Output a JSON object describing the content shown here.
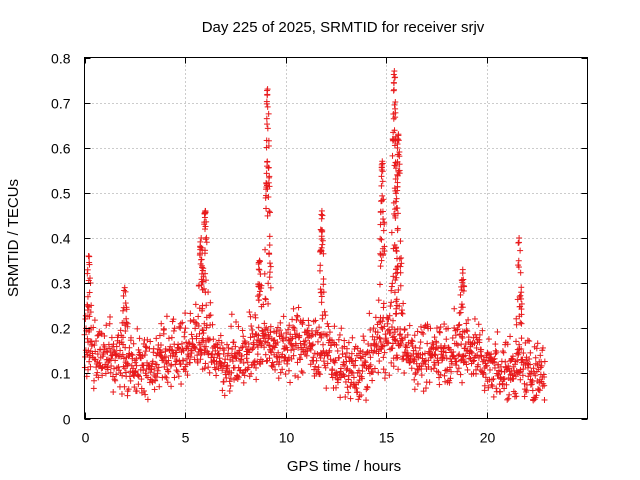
{
  "chart_data": {
    "type": "scatter",
    "title": "Day 225 of 2025, SRMTID for receiver srjv",
    "xlabel": "GPS time / hours",
    "ylabel": "SRMTID / TECUs",
    "xlim": [
      0,
      25
    ],
    "ylim": [
      0,
      0.8
    ],
    "xticks": [
      0,
      5,
      10,
      15,
      20
    ],
    "xtick_labels": [
      "0",
      "5",
      "10",
      "15",
      "20"
    ],
    "yticks": [
      0,
      0.1,
      0.2,
      0.3,
      0.4,
      0.5,
      0.6,
      0.7,
      0.8
    ],
    "ytick_labels": [
      "0",
      "0.1",
      "0.2",
      "0.3",
      "0.4",
      "0.5",
      "0.6",
      "0.7",
      "0.8"
    ],
    "grid": true,
    "marker": "+",
    "series_color": "#e8191b",
    "x_range_data": [
      0,
      22.9
    ],
    "data_profile": {
      "description": "approximate envelope of the scattered SRMTID values",
      "baseline": [
        [
          0.0,
          0.17
        ],
        [
          0.5,
          0.14
        ],
        [
          1.0,
          0.13
        ],
        [
          1.5,
          0.14
        ],
        [
          2.0,
          0.13
        ],
        [
          2.5,
          0.11
        ],
        [
          3.0,
          0.12
        ],
        [
          3.5,
          0.12
        ],
        [
          4.0,
          0.14
        ],
        [
          4.5,
          0.15
        ],
        [
          5.0,
          0.15
        ],
        [
          5.5,
          0.17
        ],
        [
          6.0,
          0.18
        ],
        [
          6.5,
          0.14
        ],
        [
          7.0,
          0.13
        ],
        [
          7.5,
          0.14
        ],
        [
          8.0,
          0.15
        ],
        [
          8.5,
          0.16
        ],
        [
          9.0,
          0.18
        ],
        [
          9.5,
          0.16
        ],
        [
          10.0,
          0.15
        ],
        [
          10.5,
          0.17
        ],
        [
          11.0,
          0.17
        ],
        [
          11.5,
          0.15
        ],
        [
          12.0,
          0.16
        ],
        [
          12.5,
          0.13
        ],
        [
          13.0,
          0.11
        ],
        [
          13.5,
          0.1
        ],
        [
          14.0,
          0.12
        ],
        [
          14.5,
          0.16
        ],
        [
          15.0,
          0.18
        ],
        [
          15.5,
          0.18
        ],
        [
          16.0,
          0.16
        ],
        [
          16.5,
          0.14
        ],
        [
          17.0,
          0.14
        ],
        [
          17.5,
          0.15
        ],
        [
          18.0,
          0.15
        ],
        [
          18.5,
          0.15
        ],
        [
          19.0,
          0.16
        ],
        [
          19.5,
          0.15
        ],
        [
          20.0,
          0.12
        ],
        [
          20.5,
          0.12
        ],
        [
          21.0,
          0.1
        ],
        [
          21.5,
          0.11
        ],
        [
          22.0,
          0.1
        ],
        [
          22.5,
          0.1
        ],
        [
          22.9,
          0.1
        ]
      ],
      "peaks": [
        {
          "x": 0.2,
          "y": 0.36
        },
        {
          "x": 2.0,
          "y": 0.29
        },
        {
          "x": 5.8,
          "y": 0.4
        },
        {
          "x": 6.0,
          "y": 0.46
        },
        {
          "x": 8.7,
          "y": 0.35
        },
        {
          "x": 9.1,
          "y": 0.73
        },
        {
          "x": 11.8,
          "y": 0.46
        },
        {
          "x": 14.8,
          "y": 0.57
        },
        {
          "x": 15.4,
          "y": 0.77
        },
        {
          "x": 15.6,
          "y": 0.63
        },
        {
          "x": 18.8,
          "y": 0.33
        },
        {
          "x": 21.6,
          "y": 0.4
        }
      ]
    }
  }
}
